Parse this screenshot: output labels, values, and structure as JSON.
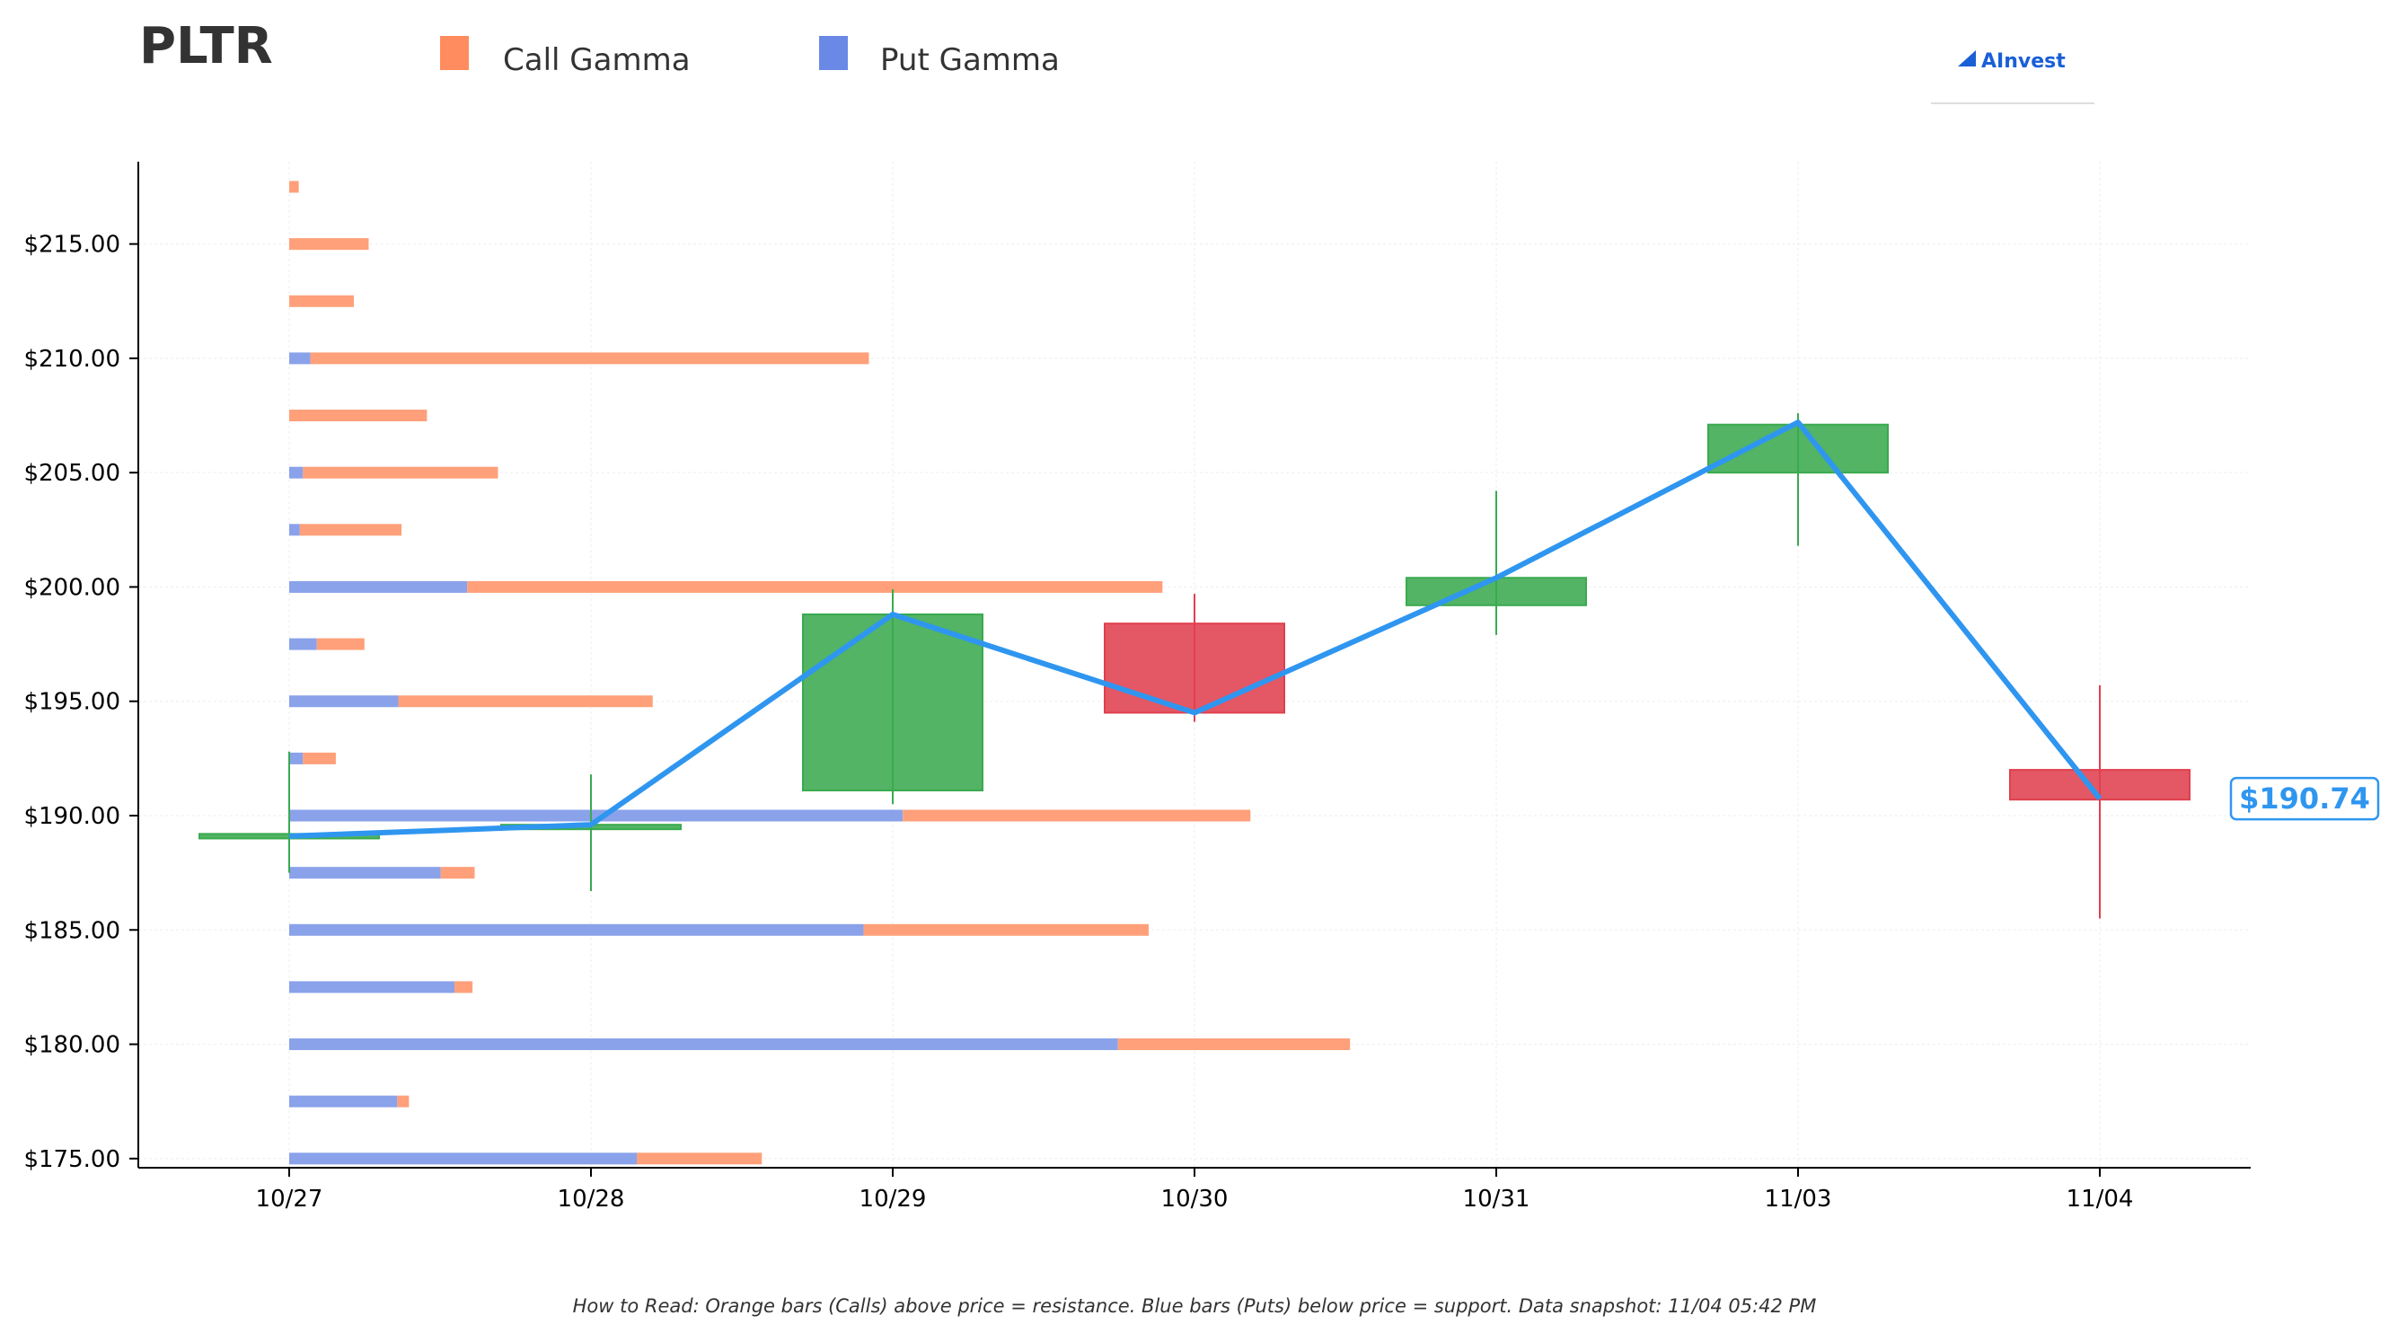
{
  "title": "PLTR",
  "legend": {
    "call_label": "Call Gamma",
    "put_label": "Put Gamma",
    "call_color": "#ff8c5e",
    "put_color": "#6a89e6"
  },
  "logo": {
    "text": "AInvest"
  },
  "price_label": "$190.74",
  "footnote": "How to Read: Orange bars (Calls) above price = resistance. Blue bars (Puts) below price = support. Data snapshot: 11/04 05:42 PM",
  "colors": {
    "up": "#3aaa4f",
    "down": "#e0404e",
    "line": "#2f96f0",
    "call_bar": "#ffa07a",
    "put_bar": "#8aa2ea"
  },
  "chart_data": {
    "type": "candlestick",
    "x_labels": [
      "10/27",
      "10/28",
      "10/29",
      "10/30",
      "10/31",
      "11/03",
      "11/04"
    ],
    "y_ticks": [
      175,
      180,
      185,
      190,
      195,
      200,
      205,
      210,
      215
    ],
    "y_tick_labels": [
      "$175.00",
      "$180.00",
      "$185.00",
      "$190.00",
      "$195.00",
      "$200.00",
      "$205.00",
      "$210.00",
      "$215.00"
    ],
    "ylim": [
      174.6,
      218.6
    ],
    "candles": [
      {
        "date": "10/27",
        "open": 189.0,
        "close": 189.2,
        "high": 192.8,
        "low": 187.5
      },
      {
        "date": "10/28",
        "open": 189.5,
        "close": 189.6,
        "high": 191.8,
        "low": 186.7
      },
      {
        "date": "10/29",
        "open": 191.1,
        "close": 198.8,
        "high": 199.9,
        "low": 190.5
      },
      {
        "date": "10/30",
        "open": 198.4,
        "close": 194.5,
        "high": 199.7,
        "low": 194.1
      },
      {
        "date": "10/31",
        "open": 199.2,
        "close": 200.4,
        "high": 204.2,
        "low": 197.9
      },
      {
        "date": "11/03",
        "open": 205.0,
        "close": 207.1,
        "high": 207.6,
        "low": 201.8
      },
      {
        "date": "11/04",
        "open": 192.0,
        "close": 190.7,
        "high": 195.7,
        "low": 185.5
      }
    ],
    "close_line": [
      189.1,
      189.6,
      198.8,
      194.5,
      200.4,
      207.2,
      190.74
    ],
    "gamma_unit_max": 100,
    "gamma": [
      {
        "strike": 217.5,
        "put": 0,
        "call": 0.9
      },
      {
        "strike": 215,
        "put": 0,
        "call": 7.5
      },
      {
        "strike": 212.5,
        "put": 0,
        "call": 6.1
      },
      {
        "strike": 210,
        "put": 2,
        "call": 52.7
      },
      {
        "strike": 207.5,
        "put": 0,
        "call": 13
      },
      {
        "strike": 205,
        "put": 1.3,
        "call": 18.4
      },
      {
        "strike": 202.5,
        "put": 1.0,
        "call": 9.6
      },
      {
        "strike": 200,
        "put": 16.8,
        "call": 65.6
      },
      {
        "strike": 197.5,
        "put": 2.6,
        "call": 4.5
      },
      {
        "strike": 195,
        "put": 10.3,
        "call": 24
      },
      {
        "strike": 192.5,
        "put": 1.3,
        "call": 3.1
      },
      {
        "strike": 190,
        "put": 57.9,
        "call": 32.8
      },
      {
        "strike": 187.5,
        "put": 14.3,
        "call": 3.2
      },
      {
        "strike": 185,
        "put": 54.2,
        "call": 26.9
      },
      {
        "strike": 182.5,
        "put": 15.6,
        "call": 1.7
      },
      {
        "strike": 180,
        "put": 78.2,
        "call": 21.9
      },
      {
        "strike": 177.5,
        "put": 10.2,
        "call": 1.1
      },
      {
        "strike": 175,
        "put": 32.8,
        "call": 11.8
      }
    ]
  }
}
